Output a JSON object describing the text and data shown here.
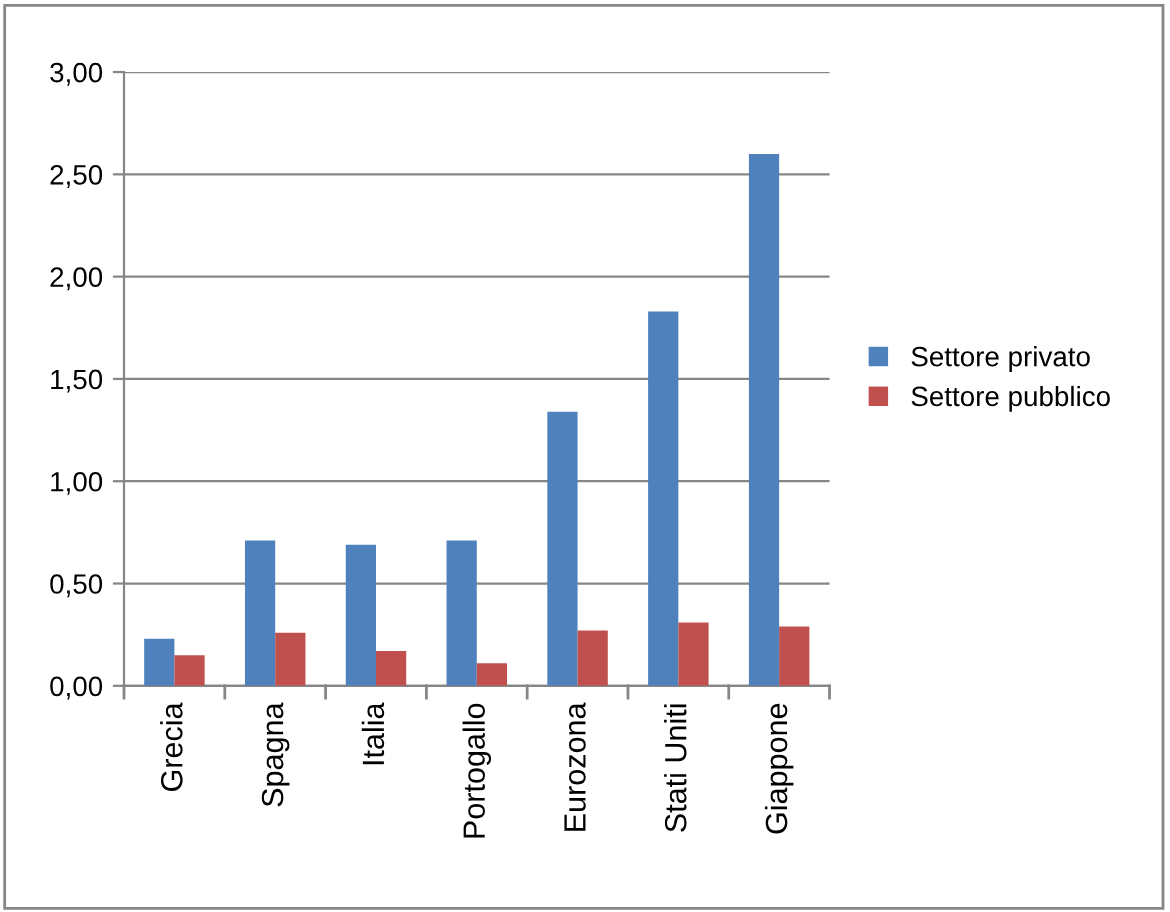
{
  "chart_data": {
    "type": "bar",
    "categories": [
      "Grecia",
      "Spagna",
      "Italia",
      "Portogallo",
      "Eurozona",
      "Stati Uniti",
      "Giappone"
    ],
    "series": [
      {
        "name": "Settore privato",
        "color": "#4f81bd",
        "values": [
          0.23,
          0.71,
          0.69,
          0.71,
          1.34,
          1.83,
          2.6
        ]
      },
      {
        "name": "Settore pubblico",
        "color": "#c0504d",
        "values": [
          0.15,
          0.26,
          0.17,
          0.11,
          0.27,
          0.31,
          0.29
        ]
      }
    ],
    "ylim": [
      0,
      3
    ],
    "yticks": [
      {
        "value": 0,
        "label": "0,00"
      },
      {
        "value": 0.5,
        "label": "0,50"
      },
      {
        "value": 1,
        "label": "1,00"
      },
      {
        "value": 1.5,
        "label": "1,50"
      },
      {
        "value": 2,
        "label": "2,00"
      },
      {
        "value": 2.5,
        "label": "2,50"
      },
      {
        "value": 3,
        "label": "3,00"
      }
    ],
    "grid": "y",
    "legend": "right"
  }
}
